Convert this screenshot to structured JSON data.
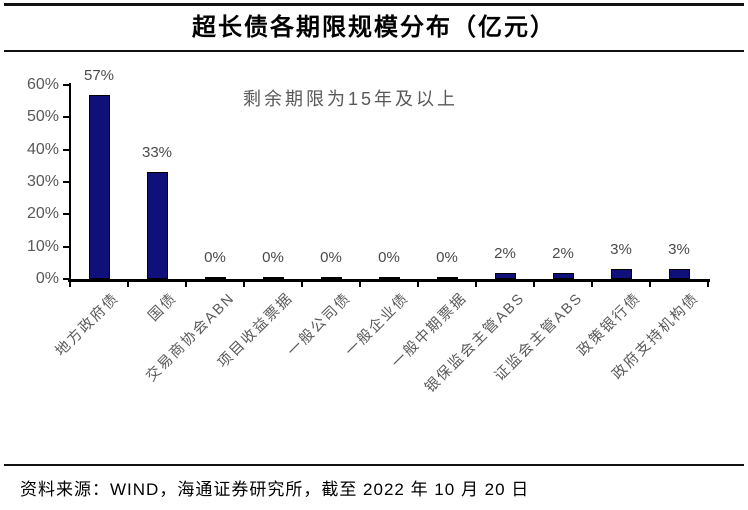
{
  "title": "超长债各期限规模分布（亿元）",
  "annotation": "剩余期限为15年及以上",
  "source_note": "资料来源：WIND，海通证券研究所，截至 2022 年 10 月 20 日",
  "colors": {
    "bar_fill": "#10107a",
    "bar_border": "#000000",
    "axis_line": "#000000",
    "axis_text": "#595959",
    "value_text": "#4a4a4a"
  },
  "chart_data": {
    "type": "bar",
    "title": "超长债各期限规模分布（亿元）",
    "annotation": "剩余期限为15年及以上",
    "categories": [
      "地方政府债",
      "国债",
      "交易商协会ABN",
      "项目收益票据",
      "一般公司债",
      "一般企业债",
      "一般中期票据",
      "银保监会主管ABS",
      "证监会主管ABS",
      "政策银行债",
      "政府支持机构债"
    ],
    "values": [
      57,
      33,
      0,
      0,
      0,
      0,
      0,
      2,
      2,
      3,
      3
    ],
    "value_labels": [
      "57%",
      "33%",
      "0%",
      "0%",
      "0%",
      "0%",
      "0%",
      "2%",
      "2%",
      "3%",
      "3%"
    ],
    "unit": "%",
    "xlabel": "",
    "ylabel": "",
    "ylim": [
      0,
      60
    ],
    "ytick_labels": [
      "0%",
      "10%",
      "20%",
      "30%",
      "40%",
      "50%",
      "60%"
    ],
    "grid": false,
    "legend": "none"
  }
}
